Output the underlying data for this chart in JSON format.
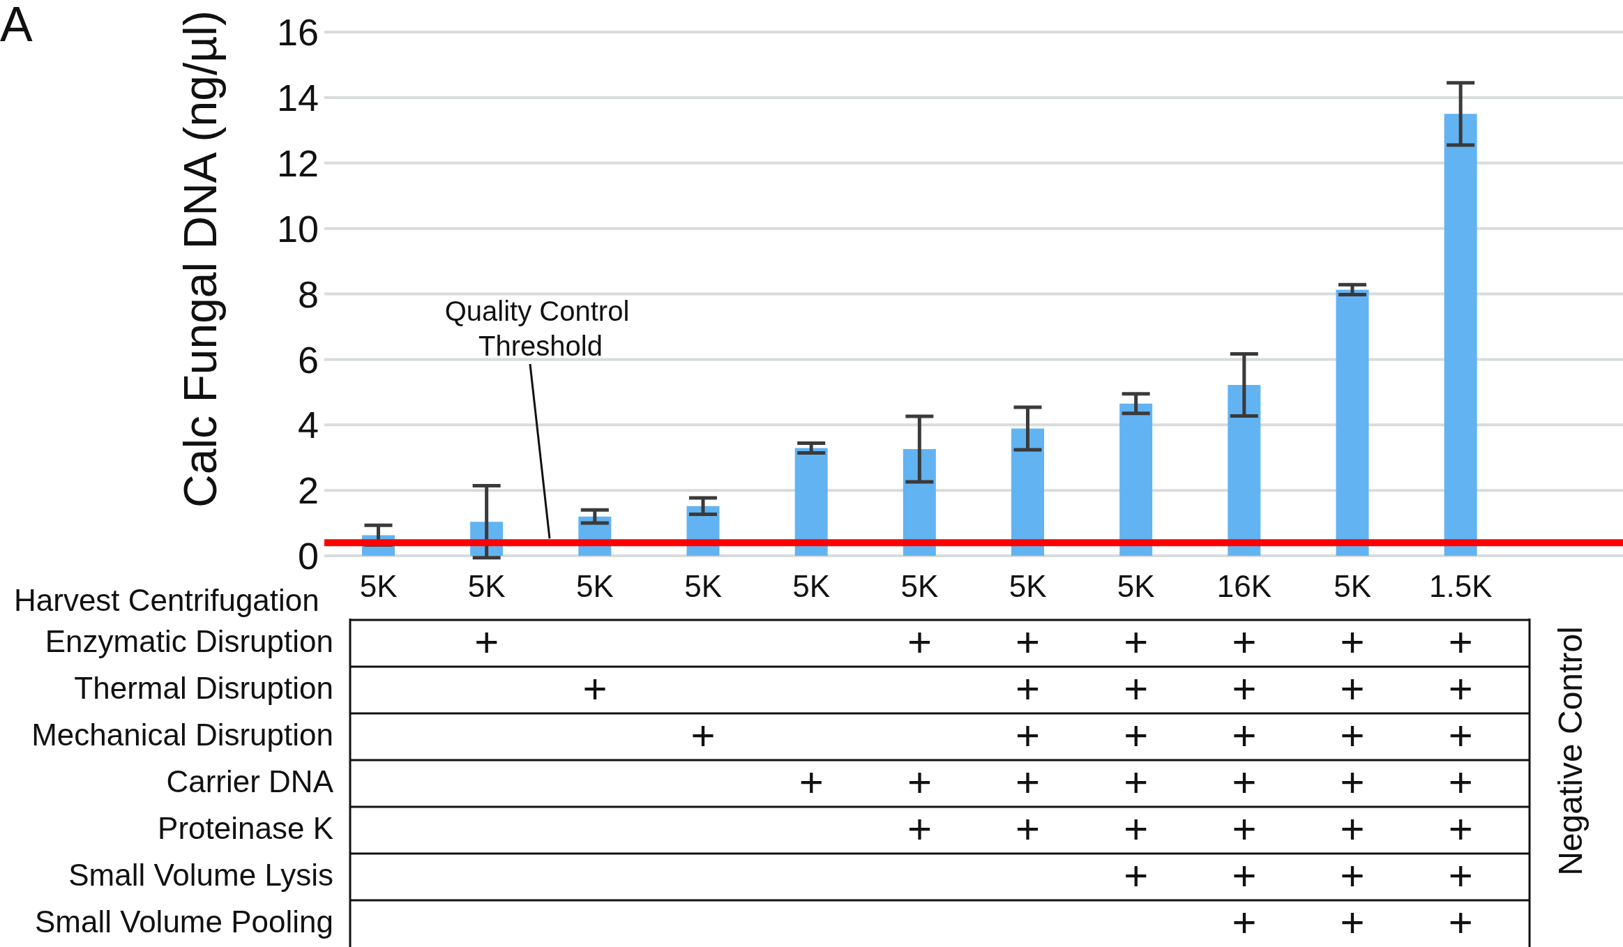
{
  "chart_data": [
    {
      "type": "bar",
      "title": "A",
      "ylabel": "Calc Fungal DNA (ng/µl)",
      "xlabel": "Harvest Centrifugation",
      "categories": [
        "5K",
        "5K",
        "5K",
        "5K",
        "5K",
        "5K",
        "5K",
        "5K",
        "16K",
        "5K",
        "1.5K",
        null
      ],
      "values": [
        0.63,
        1.04,
        1.2,
        1.52,
        3.29,
        3.26,
        3.89,
        4.65,
        5.22,
        8.13,
        13.5,
        0
      ],
      "errors": [
        0.3,
        1.1,
        0.2,
        0.25,
        0.15,
        1.0,
        0.65,
        0.3,
        0.95,
        0.15,
        0.95,
        null
      ],
      "color": "#62b3f2",
      "ylim": [
        0,
        16
      ],
      "yticks": [
        0,
        2,
        4,
        6,
        8,
        10,
        12,
        14,
        16
      ],
      "grid": "y",
      "ref_lines": [
        {
          "axis": "y",
          "value": 0.4,
          "label": "Quality Control Threshold",
          "color": "#ff0000"
        }
      ]
    },
    {
      "type": "other",
      "y_categories": [
        "Enzymatic Disruption",
        "Thermal Disruption",
        "Mechanical Disruption",
        "Carrier DNA",
        "Proteinase K",
        "Small Volume Lysis",
        "Small Volume Pooling"
      ],
      "cell_labels": [
        [
          null,
          "+",
          null,
          null,
          null,
          "+",
          "+",
          "+",
          "+",
          "+",
          "+"
        ],
        [
          null,
          null,
          "+",
          null,
          null,
          null,
          "+",
          "+",
          "+",
          "+",
          "+"
        ],
        [
          null,
          null,
          null,
          "+",
          null,
          null,
          "+",
          "+",
          "+",
          "+",
          "+"
        ],
        [
          null,
          null,
          null,
          null,
          "+",
          "+",
          "+",
          "+",
          "+",
          "+",
          "+"
        ],
        [
          null,
          null,
          null,
          null,
          null,
          "+",
          "+",
          "+",
          "+",
          "+",
          "+"
        ],
        [
          null,
          null,
          null,
          null,
          null,
          null,
          null,
          "+",
          "+",
          "+",
          "+"
        ],
        [
          null,
          null,
          null,
          null,
          null,
          null,
          null,
          null,
          "+",
          "+",
          "+"
        ]
      ],
      "annotations": [
        "Negative Control"
      ]
    }
  ]
}
